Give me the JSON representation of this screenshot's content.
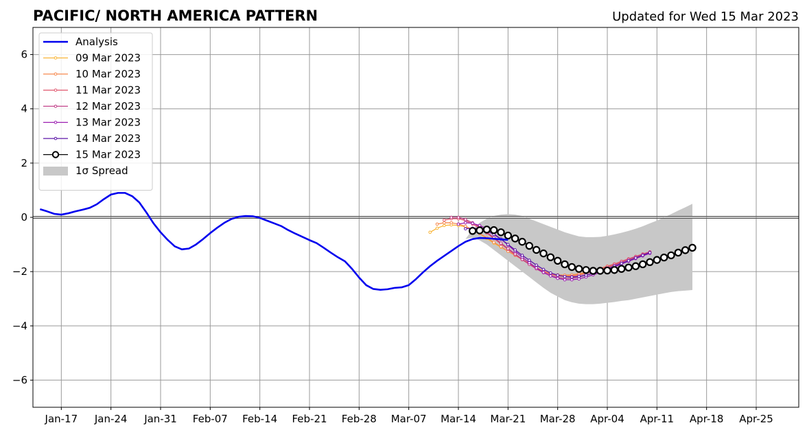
{
  "chart_data": {
    "type": "line",
    "title": "PACIFIC/ NORTH AMERICA PATTERN",
    "subtitle": "Updated for Wed 15 Mar 2023",
    "xlabel": "",
    "ylabel": "",
    "xlim": [
      "2023-01-13",
      "2023-05-01"
    ],
    "ylim": [
      -7,
      7
    ],
    "x_ticks": [
      {
        "date": "2023-01-17",
        "label": "Jan-17"
      },
      {
        "date": "2023-01-24",
        "label": "Jan-24"
      },
      {
        "date": "2023-01-31",
        "label": "Jan-31"
      },
      {
        "date": "2023-02-07",
        "label": "Feb-07"
      },
      {
        "date": "2023-02-14",
        "label": "Feb-14"
      },
      {
        "date": "2023-02-21",
        "label": "Feb-21"
      },
      {
        "date": "2023-02-28",
        "label": "Feb-28"
      },
      {
        "date": "2023-03-07",
        "label": "Mar-07"
      },
      {
        "date": "2023-03-14",
        "label": "Mar-14"
      },
      {
        "date": "2023-03-21",
        "label": "Mar-21"
      },
      {
        "date": "2023-03-28",
        "label": "Mar-28"
      },
      {
        "date": "2023-04-04",
        "label": "Apr-04"
      },
      {
        "date": "2023-04-11",
        "label": "Apr-11"
      },
      {
        "date": "2023-04-18",
        "label": "Apr-18"
      },
      {
        "date": "2023-04-25",
        "label": "Apr-25"
      }
    ],
    "y_ticks": [
      {
        "value": 6,
        "label": "6"
      },
      {
        "value": 4,
        "label": "4"
      },
      {
        "value": 2,
        "label": "2"
      },
      {
        "value": 0,
        "label": "0"
      },
      {
        "value": -2,
        "label": "−2"
      },
      {
        "value": -4,
        "label": "−4"
      },
      {
        "value": -6,
        "label": "−6"
      }
    ],
    "grid": true,
    "zero_line": true,
    "legend_position": "top-left",
    "analysis": {
      "name": "Analysis",
      "color": "#0000ee",
      "start_date": "2023-01-14",
      "values": [
        0.3,
        0.22,
        0.13,
        0.1,
        0.15,
        0.22,
        0.28,
        0.35,
        0.48,
        0.67,
        0.84,
        0.9,
        0.9,
        0.78,
        0.55,
        0.18,
        -0.22,
        -0.55,
        -0.83,
        -1.07,
        -1.18,
        -1.15,
        -1.0,
        -0.8,
        -0.58,
        -0.38,
        -0.2,
        -0.06,
        0.02,
        0.05,
        0.04,
        -0.02,
        -0.12,
        -0.22,
        -0.32,
        -0.47,
        -0.6,
        -0.72,
        -0.84,
        -0.95,
        -1.12,
        -1.3,
        -1.47,
        -1.62,
        -1.9,
        -2.22,
        -2.5,
        -2.64,
        -2.67,
        -2.65,
        -2.6,
        -2.58,
        -2.5,
        -2.28,
        -2.03,
        -1.8,
        -1.6,
        -1.42,
        -1.24,
        -1.06,
        -0.9,
        -0.8,
        -0.76,
        -0.77,
        -0.79,
        -0.81,
        -0.83
      ]
    },
    "spread": {
      "name": "1σ Spread",
      "color": "#c8c8c8",
      "start_date": "2023-03-15",
      "upper": [
        -0.8,
        -0.45,
        -0.2,
        -0.05,
        0.05,
        0.1,
        0.12,
        0.1,
        0.05,
        -0.05,
        -0.15,
        -0.25,
        -0.35,
        -0.45,
        -0.55,
        -0.63,
        -0.7,
        -0.73,
        -0.73,
        -0.72,
        -0.68,
        -0.63,
        -0.57,
        -0.5,
        -0.42,
        -0.33,
        -0.22,
        -0.12,
        0.0,
        0.12,
        0.25,
        0.37,
        0.5
      ],
      "lower": [
        -0.8,
        -0.75,
        -0.85,
        -1.0,
        -1.2,
        -1.4,
        -1.6,
        -1.8,
        -2.0,
        -2.2,
        -2.4,
        -2.6,
        -2.78,
        -2.92,
        -3.05,
        -3.13,
        -3.18,
        -3.2,
        -3.2,
        -3.18,
        -3.15,
        -3.12,
        -3.08,
        -3.05,
        -3.0,
        -2.95,
        -2.9,
        -2.85,
        -2.8,
        -2.75,
        -2.72,
        -2.7,
        -2.68
      ]
    },
    "forecasts": [
      {
        "name": "09 Mar 2023",
        "color": "#f9b435",
        "start_date": "2023-03-10",
        "values": [
          -0.55,
          -0.4,
          -0.3,
          -0.28,
          -0.3,
          -0.35,
          -0.45,
          -0.6,
          -0.78,
          -0.95,
          -1.1,
          -1.25,
          -1.4,
          -1.55,
          -1.7,
          -1.85,
          -1.98,
          -2.08,
          -2.14,
          -2.16,
          -2.15,
          -2.12,
          -2.05,
          -1.98,
          -1.9,
          -1.82,
          -1.73,
          -1.65,
          -1.56,
          -1.47,
          -1.39,
          -1.3
        ]
      },
      {
        "name": "10 Mar 2023",
        "color": "#f6874c",
        "start_date": "2023-03-11",
        "values": [
          -0.25,
          -0.2,
          -0.2,
          -0.25,
          -0.33,
          -0.45,
          -0.6,
          -0.75,
          -0.92,
          -1.08,
          -1.25,
          -1.4,
          -1.55,
          -1.7,
          -1.85,
          -1.98,
          -2.08,
          -2.12,
          -2.13,
          -2.12,
          -2.08,
          -2.02,
          -1.95,
          -1.88,
          -1.8,
          -1.72,
          -1.63,
          -1.54,
          -1.45,
          -1.37,
          -1.3
        ]
      },
      {
        "name": "11 Mar 2023",
        "color": "#e0556d",
        "start_date": "2023-03-12",
        "values": [
          -0.1,
          -0.05,
          -0.05,
          -0.12,
          -0.25,
          -0.4,
          -0.58,
          -0.78,
          -0.98,
          -1.18,
          -1.38,
          -1.56,
          -1.73,
          -1.88,
          -2.0,
          -2.1,
          -2.16,
          -2.18,
          -2.17,
          -2.13,
          -2.07,
          -1.99,
          -1.9,
          -1.81,
          -1.72,
          -1.62,
          -1.53,
          -1.44,
          -1.35,
          -1.27
        ]
      },
      {
        "name": "12 Mar 2023",
        "color": "#bf3984",
        "start_date": "2023-03-13",
        "values": [
          0.0,
          0.0,
          -0.08,
          -0.2,
          -0.36,
          -0.55,
          -0.75,
          -0.95,
          -1.15,
          -1.35,
          -1.55,
          -1.73,
          -1.9,
          -2.04,
          -2.15,
          -2.22,
          -2.25,
          -2.24,
          -2.2,
          -2.13,
          -2.05,
          -1.96,
          -1.86,
          -1.76,
          -1.66,
          -1.56,
          -1.46,
          -1.37,
          -1.28
        ]
      },
      {
        "name": "13 Mar 2023",
        "color": "#9a1bb0",
        "start_date": "2023-03-14",
        "values": [
          -0.25,
          -0.2,
          -0.22,
          -0.3,
          -0.42,
          -0.6,
          -0.8,
          -1.02,
          -1.25,
          -1.47,
          -1.67,
          -1.86,
          -2.03,
          -2.16,
          -2.25,
          -2.3,
          -2.3,
          -2.27,
          -2.2,
          -2.12,
          -2.03,
          -1.93,
          -1.83,
          -1.72,
          -1.62,
          -1.52,
          -1.42,
          -1.33
        ]
      },
      {
        "name": "14 Mar 2023",
        "color": "#5c15a8",
        "start_date": "2023-03-15",
        "values": [
          -0.42,
          -0.4,
          -0.42,
          -0.5,
          -0.63,
          -0.8,
          -1.0,
          -1.2,
          -1.4,
          -1.58,
          -1.76,
          -1.92,
          -2.05,
          -2.13,
          -2.18,
          -2.2,
          -2.18,
          -2.13,
          -2.07,
          -1.99,
          -1.9,
          -1.8,
          -1.7,
          -1.6,
          -1.5,
          -1.4,
          -1.3
        ]
      },
      {
        "name": "15 Mar 2023",
        "color": "#000000",
        "start_date": "2023-03-16",
        "values": [
          -0.5,
          -0.48,
          -0.45,
          -0.47,
          -0.55,
          -0.67,
          -0.78,
          -0.9,
          -1.05,
          -1.2,
          -1.33,
          -1.47,
          -1.6,
          -1.73,
          -1.83,
          -1.9,
          -1.94,
          -1.97,
          -1.97,
          -1.96,
          -1.94,
          -1.9,
          -1.85,
          -1.8,
          -1.73,
          -1.65,
          -1.57,
          -1.48,
          -1.4,
          -1.3,
          -1.21,
          -1.12
        ]
      }
    ]
  }
}
